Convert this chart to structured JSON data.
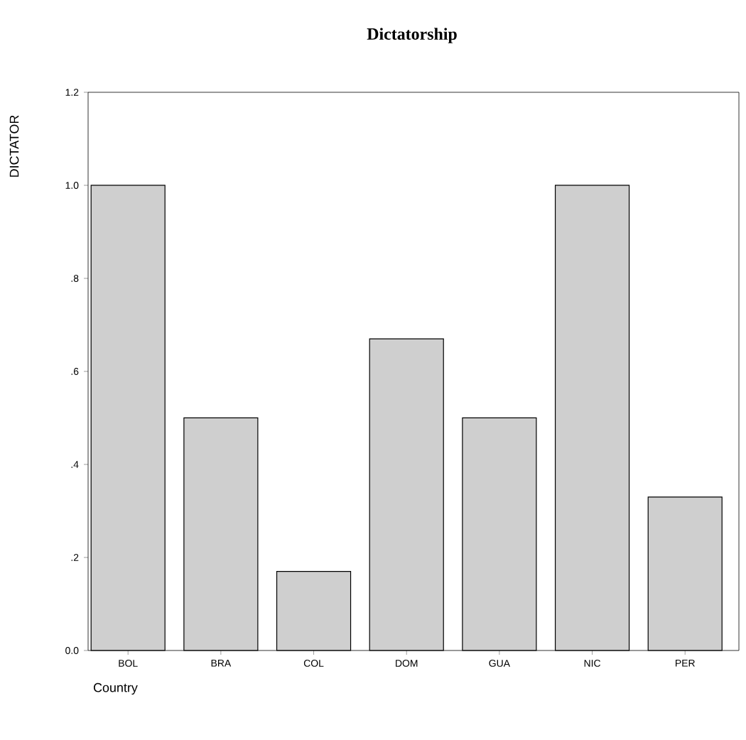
{
  "chart_data": {
    "type": "bar",
    "title": "Dictatorship",
    "xlabel": "Country",
    "ylabel": "DICTATOR",
    "categories": [
      "BOL",
      "BRA",
      "COL",
      "DOM",
      "GUA",
      "NIC",
      "PER"
    ],
    "values": [
      1.0,
      0.5,
      0.17,
      0.67,
      0.5,
      1.0,
      0.33
    ],
    "color": "#cfcfcf",
    "ylim": [
      0,
      1.2
    ],
    "yticks": [
      {
        "value": 0,
        "label": "0.0"
      },
      {
        "value": 0.2,
        "label": ".2"
      },
      {
        "value": 0.4,
        "label": ".4"
      },
      {
        "value": 0.6,
        "label": ".6"
      },
      {
        "value": 0.8,
        "label": ".8"
      },
      {
        "value": 1.0,
        "label": "1.0"
      },
      {
        "value": 1.2,
        "label": "1.2"
      }
    ]
  }
}
